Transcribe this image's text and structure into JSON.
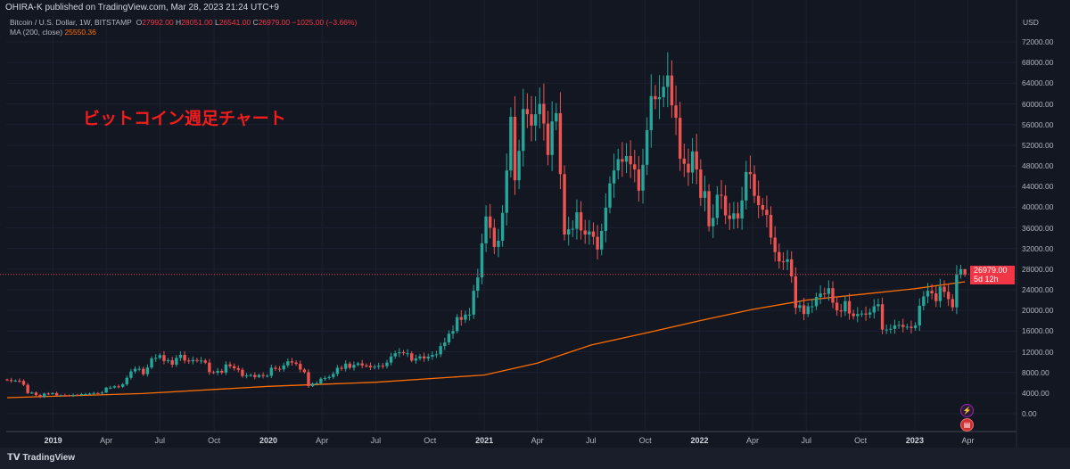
{
  "header": {
    "published": "OHIRA-K published on TradingView.com, Mar 28, 2023 21:24 UTC+9",
    "symbol": "Bitcoin / U.S. Dollar, 1W, BITSTAMP",
    "o_label": "O",
    "o": "27992.00",
    "h_label": "H",
    "h": "28051.00",
    "l_label": "L",
    "l": "26541.00",
    "c_label": "C",
    "c": "26979.00",
    "change": "−1025.00 (−3.66%)",
    "ma_label": "MA (200, close)",
    "ma_value": "25550.36"
  },
  "annotation": "ビットコイン週足チャート",
  "currency": "USD",
  "last_price": {
    "value": "26979.00",
    "countdown": "5d 12h"
  },
  "footer": {
    "brand": "TradingView"
  },
  "icons": [
    "lightning-icon",
    "us-flag-icon"
  ],
  "colors": {
    "up": "#26a69a",
    "down": "#ef5350",
    "ma": "#ff6d00",
    "price_line": "#f23645",
    "bg": "#131722"
  },
  "chart_data": {
    "type": "candlestick",
    "title": "Bitcoin / U.S. Dollar, 1W, BITSTAMP",
    "start_week": "2018-10-15",
    "interval": "1W",
    "closes": [
      6500,
      6400,
      6400,
      6350,
      5600,
      4000,
      4100,
      3600,
      3200,
      3900,
      3800,
      4000,
      3550,
      3600,
      3550,
      3450,
      3650,
      3600,
      3800,
      3800,
      3900,
      4000,
      3950,
      4100,
      5050,
      5050,
      5300,
      5200,
      5700,
      6950,
      8200,
      8700,
      8700,
      7650,
      8950,
      10700,
      10800,
      11350,
      10200,
      10350,
      9500,
      10800,
      11400,
      10300,
      10150,
      10400,
      10300,
      10300,
      9900,
      8050,
      7950,
      8300,
      7950,
      9550,
      9200,
      8800,
      8500,
      7300,
      7400,
      7500,
      7100,
      7500,
      7300,
      7350,
      8900,
      8700,
      8600,
      9350,
      10150,
      9900,
      9650,
      8550,
      8050,
      5350,
      5830,
      5880,
      6780,
      6900,
      7100,
      7700,
      8900,
      8700,
      9700,
      8900,
      9450,
      9750,
      9350,
      9300,
      9000,
      9100,
      9300,
      9200,
      9900,
      11100,
      11700,
      11900,
      11700,
      11700,
      10300,
      10700,
      11100,
      10700,
      11050,
      11400,
      11500,
      13100,
      13800,
      15500,
      16000,
      18700,
      18200,
      19200,
      19200,
      23800,
      26400,
      33000,
      38200,
      36000,
      32300,
      33500,
      38900,
      47100,
      57500,
      45200,
      50900,
      59000,
      58000,
      55800,
      58000,
      60000,
      56200,
      50100,
      56600,
      58200,
      46400,
      34700,
      35700,
      35800,
      39000,
      35500,
      34700,
      35300,
      34250,
      31800,
      35400,
      39900,
      44600,
      47100,
      49300,
      48800,
      49900,
      48300,
      47300,
      43200,
      48200,
      54900,
      61500,
      60900,
      61300,
      63300,
      65500,
      59700,
      57300,
      49400,
      48400,
      46700,
      50800,
      47300,
      41800,
      43100,
      36300,
      37900,
      42400,
      42200,
      38400,
      37700,
      38800,
      37800,
      41300,
      46800,
      46400,
      42200,
      40400,
      39500,
      38500,
      34100,
      31300,
      29500,
      29400,
      29900,
      26600,
      20500,
      21000,
      19300,
      20800,
      20800,
      22600,
      23300,
      23200,
      24300,
      21500,
      20000,
      19800,
      21800,
      19400,
      18900,
      19300,
      19400,
      19200,
      19600,
      20800,
      21200,
      16300,
      16300,
      16450,
      17100,
      17200,
      16800,
      16850,
      16600,
      17100,
      20900,
      22700,
      23800,
      23300,
      21800,
      24600,
      23600,
      22200,
      20600,
      26900,
      27992,
      26979
    ],
    "last_candle": {
      "open": 27992,
      "high": 28051,
      "low": 26541,
      "close": 26979
    },
    "ma200": [
      {
        "date": "2018-10-15",
        "value": 3100
      },
      {
        "date": "2019-06-01",
        "value": 3900
      },
      {
        "date": "2020-01-01",
        "value": 5300
      },
      {
        "date": "2020-07-01",
        "value": 6100
      },
      {
        "date": "2021-01-01",
        "value": 7500
      },
      {
        "date": "2021-04-01",
        "value": 9800
      },
      {
        "date": "2021-07-01",
        "value": 13300
      },
      {
        "date": "2021-10-01",
        "value": 15600
      },
      {
        "date": "2022-01-01",
        "value": 18000
      },
      {
        "date": "2022-04-01",
        "value": 20200
      },
      {
        "date": "2022-07-01",
        "value": 22000
      },
      {
        "date": "2022-10-01",
        "value": 23100
      },
      {
        "date": "2023-01-01",
        "value": 24200
      },
      {
        "date": "2023-03-27",
        "value": 25550.36
      }
    ],
    "y_ticks": [
      "72000.00",
      "68000.00",
      "64000.00",
      "60000.00",
      "56000.00",
      "52000.00",
      "48000.00",
      "44000.00",
      "40000.00",
      "36000.00",
      "32000.00",
      "28000.00",
      "24000.00",
      "20000.00",
      "16000.00",
      "12000.00",
      "8000.00",
      "4000.00",
      "0.00"
    ],
    "ylim": [
      0,
      72000
    ],
    "x_ticks": [
      {
        "label": "2019",
        "date": "2019-01-01",
        "year": true
      },
      {
        "label": "Apr",
        "date": "2019-04-01"
      },
      {
        "label": "Jul",
        "date": "2019-07-01"
      },
      {
        "label": "Oct",
        "date": "2019-10-01"
      },
      {
        "label": "2020",
        "date": "2020-01-01",
        "year": true
      },
      {
        "label": "Apr",
        "date": "2020-04-01"
      },
      {
        "label": "Jul",
        "date": "2020-07-01"
      },
      {
        "label": "Oct",
        "date": "2020-10-01"
      },
      {
        "label": "2021",
        "date": "2021-01-01",
        "year": true
      },
      {
        "label": "Apr",
        "date": "2021-04-01"
      },
      {
        "label": "Jul",
        "date": "2021-07-01"
      },
      {
        "label": "Oct",
        "date": "2021-10-01"
      },
      {
        "label": "2022",
        "date": "2022-01-01",
        "year": true
      },
      {
        "label": "Apr",
        "date": "2022-04-01"
      },
      {
        "label": "Jul",
        "date": "2022-07-01"
      },
      {
        "label": "Oct",
        "date": "2022-10-01"
      },
      {
        "label": "2023",
        "date": "2023-01-01",
        "year": true
      },
      {
        "label": "Apr",
        "date": "2023-04-01"
      }
    ]
  }
}
